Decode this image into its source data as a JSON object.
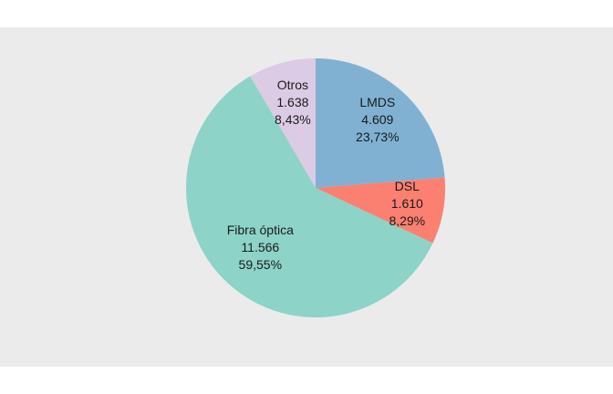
{
  "chart_data": {
    "type": "pie",
    "slices": [
      {
        "label": "LMDS",
        "value": 4609,
        "value_text": "4.609",
        "percent": 23.73,
        "percent_text": "23,73%",
        "color": "#80b1d3"
      },
      {
        "label": "DSL",
        "value": 1610,
        "value_text": "1.610",
        "percent": 8.29,
        "percent_text": "8,29%",
        "color": "#fb8072"
      },
      {
        "label": "Fibra óptica",
        "value": 11566,
        "value_text": "11.566",
        "percent": 59.55,
        "percent_text": "59,55%",
        "color": "#8dd3c7"
      },
      {
        "label": "Otros",
        "value": 1638,
        "value_text": "1.638",
        "percent": 8.43,
        "percent_text": "8,43%",
        "color": "#dccbe4"
      }
    ],
    "start_angle": "12 o'clock",
    "direction": "clockwise",
    "legend": "none",
    "panel_background": "#ebebeb"
  }
}
